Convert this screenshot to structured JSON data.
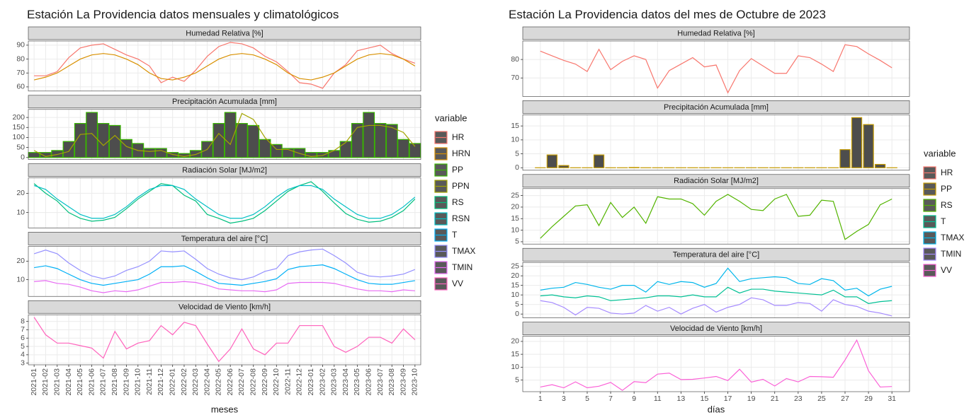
{
  "chart_data": [
    {
      "type": "facet",
      "title": "Estación La Providencia datos mensuales y climatológicos",
      "x_label": "meses",
      "legend_title": "variable",
      "categories": [
        "2021-01",
        "2021-02",
        "2021-03",
        "2021-04",
        "2021-05",
        "2021-06",
        "2021-07",
        "2021-08",
        "2021-09",
        "2021-10",
        "2021-11",
        "2021-12",
        "2022-01",
        "2022-02",
        "2022-03",
        "2022-04",
        "2022-05",
        "2022-06",
        "2022-07",
        "2022-08",
        "2022-09",
        "2022-10",
        "2022-11",
        "2022-12",
        "2023-01",
        "2023-02",
        "2023-03",
        "2023-04",
        "2023-05",
        "2023-06",
        "2023-07",
        "2023-08",
        "2023-09",
        "2023-10"
      ],
      "panels": [
        {
          "title": "Humedad Relativa [%]",
          "ylim": [
            57,
            93
          ],
          "yticks": [
            60,
            70,
            80,
            90
          ],
          "series": [
            {
              "name": "HR",
              "color": "#F8766D",
              "values": [
                68,
                68,
                71,
                81,
                88,
                90,
                91,
                87,
                83,
                80,
                75,
                63,
                67,
                64,
                72,
                82,
                89,
                92,
                91,
                88,
                82,
                78,
                71,
                63,
                62,
                59,
                70,
                76,
                86,
                88,
                90,
                84,
                80,
                77
              ]
            },
            {
              "name": "HRN",
              "color": "#D89000",
              "values": [
                65,
                67,
                70,
                75,
                80,
                83,
                84,
                83,
                80,
                76,
                70,
                66,
                65,
                67,
                70,
                75,
                80,
                83,
                84,
                83,
                80,
                76,
                70,
                66,
                65,
                67,
                70,
                75,
                80,
                83,
                84,
                83,
                80,
                75
              ]
            }
          ]
        },
        {
          "title": "Precipitación Acumulada [mm]",
          "ylim": [
            -10,
            240
          ],
          "yticks": [
            0,
            50,
            100,
            150,
            200
          ],
          "series": [
            {
              "name": "PP",
              "color": "#39B600",
              "style": "bar",
              "values": [
                25,
                25,
                35,
                80,
                170,
                225,
                170,
                160,
                90,
                70,
                45,
                45,
                25,
                20,
                35,
                80,
                170,
                225,
                170,
                160,
                90,
                65,
                45,
                45,
                25,
                25,
                35,
                80,
                170,
                225,
                170,
                165,
                90,
                70
              ]
            },
            {
              "name": "PPN",
              "color": "#A3A500",
              "values": [
                35,
                5,
                15,
                30,
                115,
                120,
                60,
                110,
                55,
                35,
                30,
                35,
                15,
                5,
                15,
                40,
                120,
                65,
                220,
                190,
                100,
                40,
                40,
                20,
                5,
                10,
                35,
                75,
                150,
                160,
                160,
                150,
                125,
                55
              ]
            }
          ]
        },
        {
          "title": "Radiación Solar [MJ/m2]",
          "ylim": [
            2,
            28
          ],
          "yticks": [
            10,
            20
          ],
          "series": [
            {
              "name": "RS",
              "color": "#00BF7D",
              "values": [
                25,
                20,
                16,
                10,
                7,
                5.5,
                6,
                7.5,
                12,
                17,
                21,
                25,
                24,
                19,
                16,
                9,
                7,
                4.5,
                5.5,
                7,
                11,
                16,
                21,
                24,
                26,
                21,
                15,
                9.5,
                6.5,
                5,
                5.5,
                7.5,
                11,
                17
              ]
            },
            {
              "name": "RSN",
              "color": "#00BFC4",
              "values": [
                24,
                22,
                17,
                13,
                9,
                7,
                7,
                9,
                13,
                18,
                22,
                24,
                24,
                22,
                17,
                13,
                9,
                7,
                7,
                9,
                13,
                18,
                22,
                24,
                24,
                22,
                17,
                13,
                9,
                7,
                7,
                9,
                13,
                18
              ]
            }
          ]
        },
        {
          "title": "Temperatura del aire [°C]",
          "ylim": [
            1,
            28
          ],
          "yticks": [
            10,
            20
          ],
          "series": [
            {
              "name": "T",
              "color": "#00B0F6",
              "values": [
                16.5,
                17.5,
                16,
                13,
                10,
                8,
                7,
                8,
                9,
                10,
                13,
                17,
                17,
                17.5,
                14.5,
                11,
                8,
                7.5,
                7,
                8,
                9,
                10.5,
                15.5,
                17,
                17.5,
                18,
                16,
                13,
                10,
                8,
                7.5,
                7.5,
                8.5,
                9.5
              ]
            },
            {
              "name": "TMAX",
              "color": "#9590FF",
              "values": [
                24,
                26,
                24,
                19,
                15,
                12,
                10.5,
                12,
                15,
                17,
                20,
                25.5,
                25,
                25.5,
                21,
                16,
                13,
                11,
                10,
                11.5,
                14.5,
                16,
                23,
                25,
                26,
                26.5,
                23,
                19,
                14,
                12,
                11.5,
                12,
                13,
                15.5
              ]
            },
            {
              "name": "TMIN",
              "color": "#E76BF3",
              "values": [
                9,
                9.5,
                8,
                7.5,
                6,
                4,
                3,
                4,
                3.5,
                4.5,
                6.5,
                8.5,
                8.5,
                9,
                8.5,
                7,
                5,
                4.5,
                4,
                4,
                3.5,
                4.5,
                8,
                8.5,
                8.5,
                8.5,
                8,
                6.5,
                5,
                4,
                4,
                3.5,
                4.5,
                4
              ]
            }
          ]
        },
        {
          "title": "Velocidad de Viento [km/h]",
          "ylim": [
            2.8,
            8.8
          ],
          "yticks": [
            3,
            4,
            5,
            6,
            7,
            8
          ],
          "series": [
            {
              "name": "VV",
              "color": "#FF62BC",
              "values": [
                8.5,
                6.4,
                5.4,
                5.4,
                5.1,
                4.8,
                3.6,
                6.8,
                4.7,
                5.4,
                5.7,
                7.5,
                6.4,
                7.9,
                7.5,
                5.3,
                3.2,
                4.7,
                7.1,
                4.7,
                4,
                5.4,
                5.4,
                7.5,
                7.5,
                7.5,
                5,
                4.3,
                5,
                6.1,
                6.1,
                5.4,
                7.1,
                5.8
              ]
            }
          ]
        }
      ]
    },
    {
      "type": "facet",
      "title": "Estación La Providencia datos del mes de Octubre de 2023",
      "x_label": "días",
      "legend_title": "variable",
      "x": [
        1,
        2,
        3,
        4,
        5,
        6,
        7,
        8,
        9,
        10,
        11,
        12,
        13,
        14,
        15,
        16,
        17,
        18,
        19,
        20,
        21,
        22,
        23,
        24,
        25,
        26,
        27,
        28,
        29,
        30,
        31
      ],
      "xlim": [
        -0.5,
        32.5
      ],
      "xticks": [
        1,
        3,
        5,
        7,
        9,
        11,
        13,
        15,
        17,
        19,
        21,
        23,
        25,
        27,
        29,
        31
      ],
      "panels": [
        {
          "title": "Humedad Relativa [%]",
          "ylim": [
            60,
            90
          ],
          "yticks": [
            70,
            80
          ],
          "series": [
            {
              "name": "HR",
              "color": "#F8766D",
              "values": [
                84.5,
                82,
                79.5,
                77.5,
                73.5,
                85.5,
                74.5,
                79,
                82,
                80,
                64.5,
                74,
                77.5,
                81,
                76,
                77,
                62,
                74,
                80.5,
                76.5,
                72.5,
                72.5,
                82,
                81,
                77.5,
                73.5,
                88,
                87,
                83,
                79.5,
                75.5
              ]
            }
          ]
        },
        {
          "title": "Precipitación Acumulada [mm]",
          "ylim": [
            -0.9,
            19
          ],
          "yticks": [
            0,
            5,
            10,
            15
          ],
          "series": [
            {
              "name": "PP",
              "color": "#C49A00",
              "style": "bar",
              "values": [
                0,
                4.6,
                0.8,
                0,
                0,
                4.6,
                0,
                0,
                0.1,
                0,
                0,
                0,
                0,
                0,
                0,
                0,
                0,
                0,
                0,
                0,
                0,
                0,
                0,
                0,
                0,
                0,
                6.5,
                18,
                15.5,
                1.2,
                0
              ]
            }
          ]
        },
        {
          "title": "Radiación Solar [MJ/m2]",
          "ylim": [
            4,
            28
          ],
          "yticks": [
            5,
            10,
            15,
            20,
            25
          ],
          "series": [
            {
              "name": "RS",
              "color": "#53B400",
              "values": [
                6.5,
                11.5,
                16,
                20.5,
                21,
                12,
                22,
                15.5,
                20,
                13,
                24.5,
                23.5,
                23.5,
                21.5,
                16.5,
                22.5,
                25.5,
                22.5,
                19,
                18.5,
                23.5,
                25.5,
                16,
                16.5,
                23,
                22.5,
                6,
                9.5,
                12.5,
                21,
                23.5
              ]
            }
          ]
        },
        {
          "title": "Temperatura del aire [°C]",
          "ylim": [
            -2,
            27
          ],
          "yticks": [
            0,
            5,
            10,
            15,
            20,
            25
          ],
          "series": [
            {
              "name": "T",
              "color": "#00C094",
              "values": [
                9.5,
                10,
                9,
                8.5,
                9.5,
                9,
                7,
                7.5,
                8,
                8.5,
                9.5,
                9.5,
                9,
                10,
                9,
                9,
                14,
                11,
                13,
                13,
                12,
                11.5,
                11,
                10.5,
                10,
                12.5,
                9,
                9,
                5.5,
                6.5,
                7
              ]
            },
            {
              "name": "TMAX",
              "color": "#00B6EB",
              "values": [
                12.5,
                13.5,
                14,
                16.5,
                15.5,
                14,
                13,
                15,
                15,
                11.5,
                17,
                15.5,
                17,
                16.5,
                14,
                16,
                24,
                17,
                18.5,
                19,
                19.5,
                19,
                16,
                15.5,
                18.5,
                17.5,
                12.5,
                13.5,
                9.5,
                13,
                14.5
              ]
            },
            {
              "name": "TMIN",
              "color": "#A58AFF",
              "values": [
                7,
                6,
                3.5,
                -0.5,
                3.5,
                3,
                0.5,
                0,
                0.5,
                4.5,
                1.5,
                3.5,
                0,
                3,
                5,
                1,
                3.5,
                5,
                8.5,
                7.5,
                4.5,
                4.5,
                6,
                5.5,
                1.5,
                7.5,
                5,
                4,
                1.5,
                0.5,
                -1
              ]
            }
          ]
        },
        {
          "title": "Velocidad de Viento [km/h]",
          "ylim": [
            0.5,
            22
          ],
          "yticks": [
            5,
            10,
            15,
            20
          ],
          "series": [
            {
              "name": "VV",
              "color": "#FB61D7",
              "values": [
                2.3,
                3.2,
                2,
                4.3,
                2,
                2.6,
                4.1,
                1,
                4.4,
                4,
                7.3,
                7.7,
                5.2,
                5.3,
                5.8,
                6.4,
                4.8,
                9.2,
                4.2,
                5.3,
                2.7,
                5.6,
                4.3,
                6.4,
                6.3,
                6.1,
                12.8,
                20.5,
                8.6,
                2.3,
                2.5
              ]
            }
          ]
        }
      ]
    }
  ]
}
